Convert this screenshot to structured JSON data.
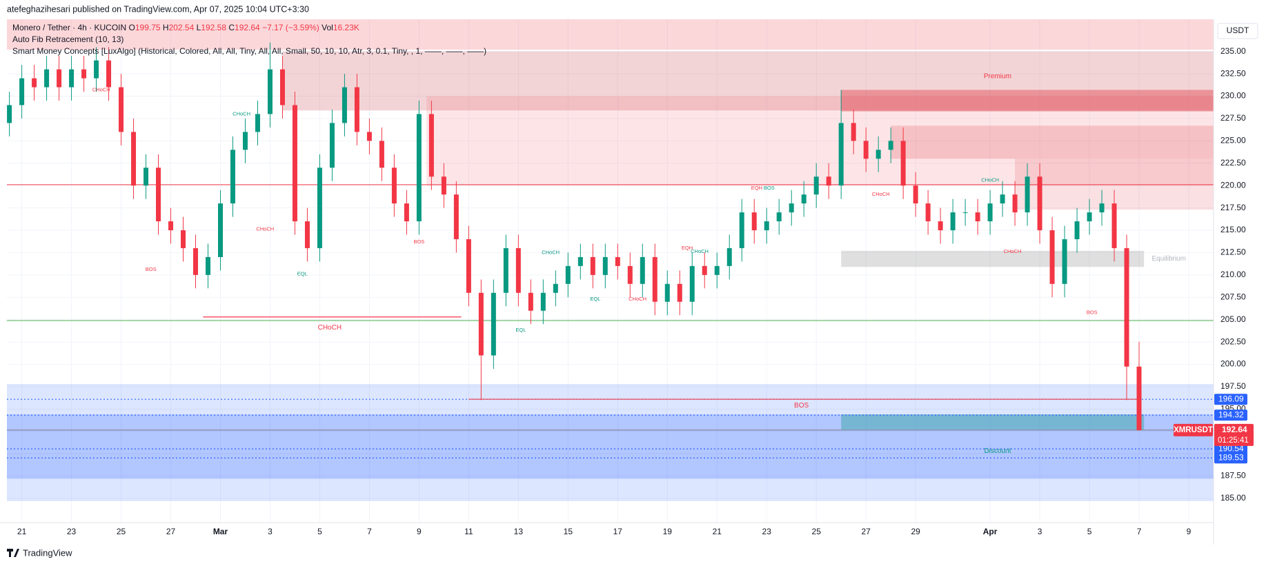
{
  "header": {
    "publisher": "atefeghazihesari published on TradingView.com, Apr 07, 2025 10:04 UTC+3:30",
    "symbol": "Monero / Tether · 4h · KUCOIN",
    "ohlc_labels": [
      "O",
      "H",
      "L",
      "C"
    ],
    "change": "−7.17 (−3.59%)",
    "vol_label": "Vol",
    "vol": "16.23K",
    "indicators": [
      "Auto Fib Retracement (10, 13)",
      "Smart Money Concepts [LuxAlgo] (Historical, Colored, All, All, Tiny, All, All, Small, 50, 10, 10, Atr, 3, 0.1, Tiny, , 1, ——, ——, ——)"
    ],
    "currency": "USDT",
    "footer": "TradingView"
  },
  "chart_data": {
    "type": "candlestick",
    "up_color": "#089981",
    "down_color": "#f23645",
    "grid": true,
    "xlim": [
      -0.6,
      48
    ],
    "ylim": [
      182.3,
      238.6
    ],
    "xticks": [
      {
        "value": 0,
        "label": "21"
      },
      {
        "value": 2,
        "label": "23"
      },
      {
        "value": 4,
        "label": "25"
      },
      {
        "value": 6,
        "label": "27"
      },
      {
        "value": 8,
        "label": "Mar"
      },
      {
        "value": 10,
        "label": "3"
      },
      {
        "value": 12,
        "label": "5"
      },
      {
        "value": 14,
        "label": "7"
      },
      {
        "value": 16,
        "label": "9"
      },
      {
        "value": 18,
        "label": "11"
      },
      {
        "value": 20,
        "label": "13"
      },
      {
        "value": 22,
        "label": "15"
      },
      {
        "value": 24,
        "label": "17"
      },
      {
        "value": 26,
        "label": "19"
      },
      {
        "value": 28,
        "label": "21"
      },
      {
        "value": 30,
        "label": "23"
      },
      {
        "value": 32,
        "label": "25"
      },
      {
        "value": 34,
        "label": "27"
      },
      {
        "value": 36,
        "label": "29"
      },
      {
        "value": 39,
        "label": "Apr"
      },
      {
        "value": 41,
        "label": "3"
      },
      {
        "value": 43,
        "label": "5"
      },
      {
        "value": 45,
        "label": "7"
      },
      {
        "value": 47,
        "label": "9"
      }
    ],
    "yticks": [
      {
        "value": 185,
        "label": "185.00"
      },
      {
        "value": 187.5,
        "label": "187.50"
      },
      {
        "value": 190,
        "label": "190.00"
      },
      {
        "value": 192.5,
        "label": "192.50"
      },
      {
        "value": 195,
        "label": "195.00"
      },
      {
        "value": 197.5,
        "label": "197.50"
      },
      {
        "value": 200,
        "label": "200.00"
      },
      {
        "value": 202.5,
        "label": "202.50"
      },
      {
        "value": 205,
        "label": "205.00"
      },
      {
        "value": 207.5,
        "label": "207.50"
      },
      {
        "value": 210,
        "label": "210.00"
      },
      {
        "value": 212.5,
        "label": "212.50"
      },
      {
        "value": 215,
        "label": "215.00"
      },
      {
        "value": 217.5,
        "label": "217.50"
      },
      {
        "value": 220,
        "label": "220.00"
      },
      {
        "value": 222.5,
        "label": "222.50"
      },
      {
        "value": 225,
        "label": "225.00"
      },
      {
        "value": 227.5,
        "label": "227.50"
      },
      {
        "value": 230,
        "label": "230.00"
      },
      {
        "value": 232.5,
        "label": "232.50"
      },
      {
        "value": 235,
        "label": "235.00"
      }
    ],
    "candles": {
      "x": [
        -0.5,
        0,
        0.5,
        1,
        1.5,
        2,
        2.5,
        3,
        3.5,
        4,
        4.5,
        5,
        5.5,
        6,
        6.5,
        7,
        7.5,
        8,
        8.5,
        9,
        9.5,
        10,
        10.5,
        11,
        11.5,
        12,
        12.5,
        13,
        13.5,
        14,
        14.5,
        15,
        15.5,
        16,
        16.5,
        17,
        17.5,
        18,
        18.5,
        19,
        19.5,
        20,
        20.5,
        21,
        21.5,
        22,
        22.5,
        23,
        23.5,
        24,
        24.5,
        25,
        25.5,
        26,
        26.5,
        27,
        27.5,
        28,
        28.5,
        29,
        29.5,
        30,
        30.5,
        31,
        31.5,
        32,
        32.5,
        33,
        33.5,
        34,
        34.5,
        35,
        35.5,
        36,
        36.5,
        37,
        37.5,
        38,
        38.5,
        39,
        39.5,
        40,
        40.5,
        41,
        41.5,
        42,
        42.5,
        43,
        43.5,
        44,
        44.5,
        45
      ],
      "open": [
        227,
        229,
        232,
        231,
        233,
        231,
        233,
        232,
        234,
        231,
        226,
        220,
        222,
        216,
        215,
        213,
        210,
        212,
        218,
        224,
        226,
        228,
        233,
        229,
        216,
        213,
        222,
        227,
        231,
        226,
        225,
        222,
        218,
        216,
        228,
        221,
        219,
        214,
        208,
        201,
        208,
        213,
        208,
        206,
        208,
        209,
        211,
        212,
        210,
        212,
        211,
        209,
        212,
        207,
        209,
        207,
        211,
        210,
        211,
        213,
        217,
        215,
        216,
        217,
        218,
        219,
        221,
        220,
        227,
        225,
        223,
        224,
        225,
        220,
        218,
        216,
        215,
        217,
        217,
        216,
        218,
        219,
        217,
        221,
        215,
        209,
        214,
        216,
        217,
        218,
        213,
        199.75
      ],
      "high": [
        230.5,
        233.5,
        233.5,
        234.5,
        234.5,
        234.5,
        234.5,
        235.5,
        235.5,
        232.5,
        227.5,
        223.5,
        223.5,
        217.5,
        216.5,
        214.5,
        213.5,
        219.5,
        225.5,
        227.5,
        229.5,
        236,
        234.5,
        230.5,
        217.5,
        223.5,
        228.5,
        232.5,
        232.5,
        227.5,
        226.5,
        223.5,
        219.5,
        229.5,
        229.5,
        222.5,
        220.5,
        215.5,
        209.5,
        209.5,
        214.5,
        214.5,
        209.5,
        209.5,
        210.5,
        212.5,
        213.5,
        213.5,
        213.5,
        213.5,
        212.5,
        213.5,
        213.5,
        210.5,
        210.5,
        212.5,
        212.5,
        212.5,
        214.5,
        218.5,
        218.5,
        217.5,
        218.5,
        219.5,
        220.5,
        222.5,
        222.5,
        230.7,
        228.5,
        226.5,
        225.5,
        226.5,
        226.5,
        221.5,
        219.5,
        217.5,
        218.5,
        218.5,
        218.5,
        219.5,
        220.5,
        220.5,
        222.5,
        222.5,
        216.5,
        215.5,
        217.5,
        218.5,
        219.5,
        219.5,
        214.5,
        202.54
      ],
      "low": [
        225.5,
        227.5,
        229.5,
        229.5,
        229.5,
        229.5,
        230.5,
        230.5,
        229.5,
        224.5,
        218.5,
        218.5,
        214.5,
        213.5,
        211.5,
        208.5,
        208.5,
        210.5,
        216.5,
        222.5,
        224.5,
        226.5,
        227.5,
        214.5,
        211.5,
        211.5,
        220.5,
        225.5,
        224.5,
        223.5,
        220.5,
        216.5,
        214.5,
        214.5,
        219.5,
        217.5,
        212.5,
        206.5,
        196,
        199.5,
        206.5,
        206.5,
        204.5,
        204.5,
        206.5,
        207.5,
        209.5,
        208.5,
        208.5,
        209.5,
        207.5,
        207.5,
        205.5,
        205.5,
        205.5,
        205.5,
        208.5,
        208.5,
        209.5,
        211.5,
        213.5,
        213.5,
        214.5,
        215.5,
        216.5,
        217.5,
        218.5,
        218.5,
        223.5,
        221.5,
        221.5,
        222.5,
        218.5,
        216.5,
        214.5,
        213.5,
        213.5,
        215.5,
        214.5,
        214.5,
        216.5,
        215.5,
        215.5,
        213.5,
        207.5,
        207.5,
        212.5,
        214.5,
        215.5,
        211.5,
        196,
        192.58
      ],
      "close": [
        229,
        232,
        231,
        233,
        231,
        233,
        232,
        234,
        231,
        226,
        220,
        222,
        216,
        215,
        213,
        210,
        212,
        218,
        224,
        226,
        228,
        233,
        229,
        216,
        213,
        222,
        227,
        231,
        226,
        225,
        222,
        218,
        216,
        228,
        221,
        219,
        214,
        208,
        201,
        208,
        213,
        208,
        206,
        208,
        209,
        211,
        212,
        210,
        212,
        211,
        209,
        212,
        207,
        209,
        207,
        211,
        210,
        211,
        213,
        217,
        215,
        216,
        217,
        218,
        219,
        221,
        220,
        227,
        225,
        223,
        224,
        225,
        220,
        218,
        216,
        215,
        217,
        217,
        216,
        218,
        219,
        217,
        221,
        215,
        209,
        214,
        216,
        217,
        218,
        213,
        199.75,
        192.64
      ]
    },
    "zones": [
      {
        "x0": -0.6,
        "x1": 48,
        "y0": 235.2,
        "y1": 238.6,
        "color": "rgba(242,54,69,0.2)"
      },
      {
        "x0": 10.5,
        "x1": 48,
        "y0": 228.4,
        "y1": 235,
        "color": "rgba(200,60,70,0.22)"
      },
      {
        "x0": 16.3,
        "x1": 48,
        "y0": 220,
        "y1": 230,
        "color": "rgba(242,54,69,0.13)"
      },
      {
        "x0": 33,
        "x1": 48,
        "y0": 228.3,
        "y1": 230.7,
        "color": "rgba(220,50,60,0.4)"
      },
      {
        "x0": 35,
        "x1": 48,
        "y0": 223,
        "y1": 226.7,
        "color": "rgba(220,50,60,0.2)"
      },
      {
        "x0": 40,
        "x1": 48,
        "y0": 217.3,
        "y1": 223,
        "color": "rgba(220,50,60,0.15)"
      },
      {
        "x0": 33,
        "x1": 45.2,
        "y0": 210.9,
        "y1": 212.7,
        "color": "rgba(150,150,150,0.3)"
      },
      {
        "x0": -0.6,
        "x1": 48,
        "y0": 184.7,
        "y1": 197.8,
        "color": "rgba(41,98,255,0.16)"
      },
      {
        "x0": -0.6,
        "x1": 48,
        "y0": 187.2,
        "y1": 194.4,
        "color": "rgba(41,98,255,0.24)"
      },
      {
        "x0": 33,
        "x1": 45.2,
        "y0": 192.7,
        "y1": 194.4,
        "color": "rgba(8,153,129,0.35)"
      }
    ],
    "levels": [
      {
        "y": 220.1,
        "color": "#f23645"
      },
      {
        "y": 204.9,
        "color": "#4caf50"
      },
      {
        "y": 192.64,
        "color": "#787b86"
      }
    ],
    "structure_lines": [
      {
        "x0": 7.3,
        "x1": 17.7,
        "y": 205.3,
        "color": "#f23645"
      },
      {
        "x0": 18,
        "x1": 45,
        "y": 196.1,
        "color": "#f23645"
      }
    ],
    "zone_labels": [
      {
        "text": "Premium",
        "x": 39.3,
        "y": 232.2,
        "color": "#f23645"
      },
      {
        "text": "Equilibrium",
        "x": 46.2,
        "y": 211.8,
        "color": "#b2b5be"
      },
      {
        "text": "Discount",
        "x": 39.3,
        "y": 190.3,
        "color": "#089981"
      }
    ],
    "structures": [
      {
        "text": "CHoCH",
        "x": 3.2,
        "y": 230.7,
        "color": "#f23645"
      },
      {
        "text": "CHoCH",
        "x": 8.85,
        "y": 228,
        "color": "#089981"
      },
      {
        "text": "BOS",
        "x": 5.2,
        "y": 210.6,
        "color": "#f23645"
      },
      {
        "text": "CHoCH",
        "x": 9.8,
        "y": 215.1,
        "color": "#f23645"
      },
      {
        "text": "EQL",
        "x": 11.3,
        "y": 210.1,
        "color": "#089981"
      },
      {
        "text": "BOS",
        "x": 16,
        "y": 213.7,
        "color": "#f23645"
      },
      {
        "text": "CHoCH",
        "x": 21.3,
        "y": 212.5,
        "color": "#089981"
      },
      {
        "text": "EQL",
        "x": 20.1,
        "y": 203.8,
        "color": "#089981"
      },
      {
        "text": "EQL",
        "x": 23.1,
        "y": 207.3,
        "color": "#089981"
      },
      {
        "text": "CHoCH",
        "x": 24.8,
        "y": 207.3,
        "color": "#f23645"
      },
      {
        "text": "EQH",
        "x": 26.8,
        "y": 213,
        "color": "#f23645"
      },
      {
        "text": "CHoCH",
        "x": 27.3,
        "y": 212.6,
        "color": "#089981"
      },
      {
        "text": "EQH",
        "x": 29.6,
        "y": 219.7,
        "color": "#f23645"
      },
      {
        "text": "BOS",
        "x": 30.1,
        "y": 219.7,
        "color": "#089981"
      },
      {
        "text": "CHoCH",
        "x": 34.6,
        "y": 219,
        "color": "#f23645"
      },
      {
        "text": "CHoCH",
        "x": 39,
        "y": 220.6,
        "color": "#089981"
      },
      {
        "text": "CHoCH",
        "x": 39.9,
        "y": 212.6,
        "color": "#f23645"
      },
      {
        "text": "BOS",
        "x": 43.1,
        "y": 205.8,
        "color": "#f23645"
      }
    ],
    "major_structures": [
      {
        "text": "CHoCH",
        "x": 12.4,
        "y": 204.1,
        "color": "#f23645"
      },
      {
        "text": "BOS",
        "x": 31.4,
        "y": 195.4,
        "color": "#f23645"
      }
    ],
    "dotted_levels": [
      {
        "value": 196.09,
        "color": "#2962ff"
      },
      {
        "value": 194.32,
        "color": "#2962ff"
      },
      {
        "value": 190.54,
        "color": "#2962ff"
      },
      {
        "value": 189.53,
        "color": "#2962ff"
      }
    ],
    "last_price": {
      "symbol": "XMRUSDT",
      "countdown": "01:25:41",
      "color": "#f23645"
    }
  }
}
